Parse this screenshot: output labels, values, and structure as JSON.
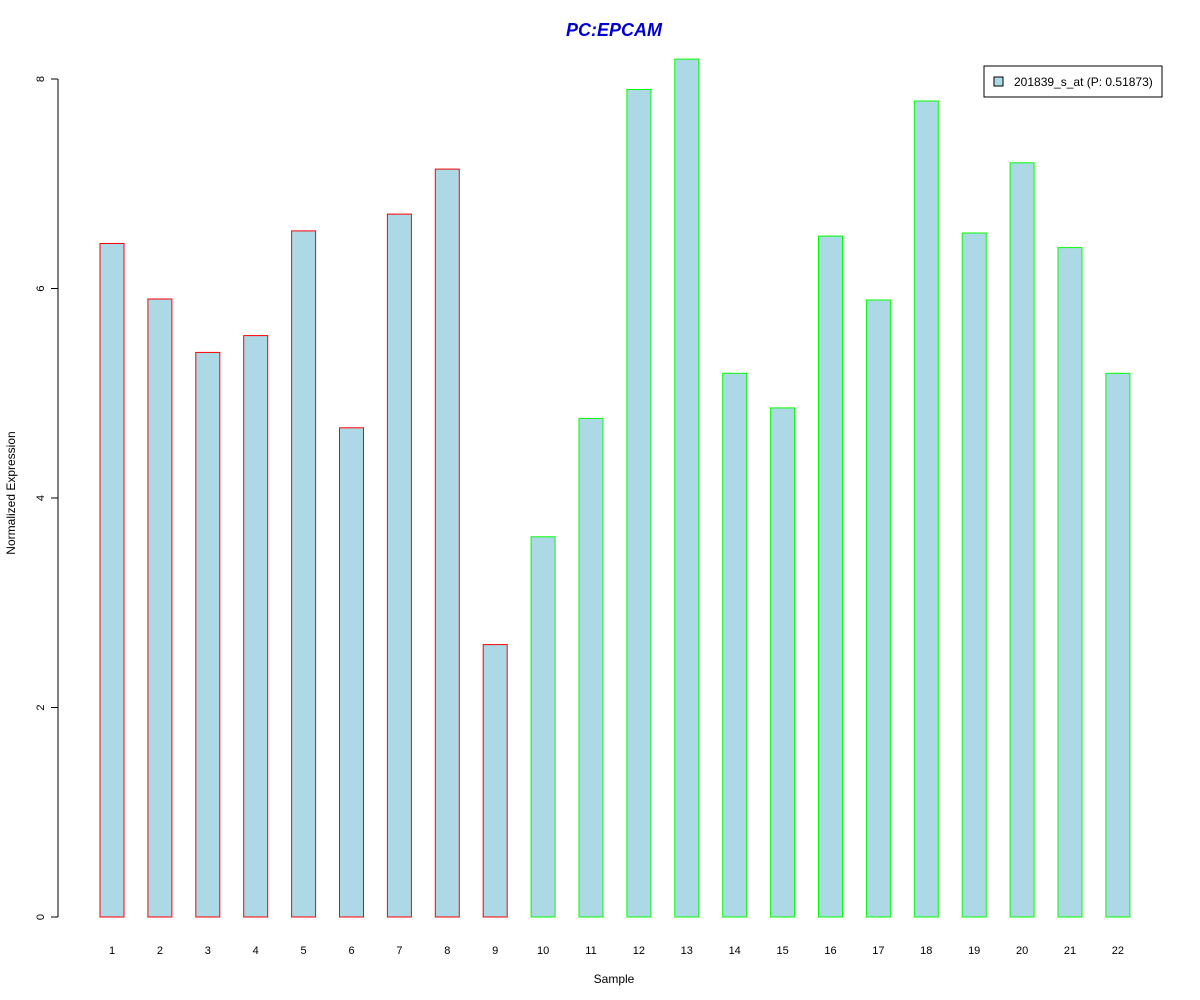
{
  "chart_data": {
    "type": "bar",
    "title": "PC:EPCAM",
    "xlabel": "Sample",
    "ylabel": "Normalized Expression",
    "ylim": [
      0,
      8.2
    ],
    "y_ticks": [
      "0",
      "2",
      "4",
      "6",
      "8"
    ],
    "categories": [
      "1",
      "2",
      "3",
      "4",
      "5",
      "6",
      "7",
      "8",
      "9",
      "10",
      "11",
      "12",
      "13",
      "14",
      "15",
      "16",
      "17",
      "18",
      "19",
      "20",
      "21",
      "22"
    ],
    "values": [
      6.43,
      5.9,
      5.39,
      5.55,
      6.55,
      4.67,
      6.71,
      7.14,
      2.6,
      3.63,
      4.76,
      7.9,
      8.19,
      5.19,
      4.86,
      6.5,
      5.89,
      7.79,
      6.53,
      7.2,
      6.39,
      5.19
    ],
    "groups": [
      1,
      1,
      1,
      1,
      1,
      1,
      1,
      1,
      1,
      2,
      2,
      2,
      2,
      2,
      2,
      2,
      2,
      2,
      2,
      2,
      2,
      2
    ],
    "series": [
      {
        "name": "201839_s_at (P: 0.51873)",
        "fill_color": "#add8e6"
      }
    ],
    "group_border_colors": {
      "1": "#ff0000",
      "2": "#00ff00"
    },
    "title_color": "#0000cd",
    "legend_position": "top-right",
    "grid": false
  }
}
